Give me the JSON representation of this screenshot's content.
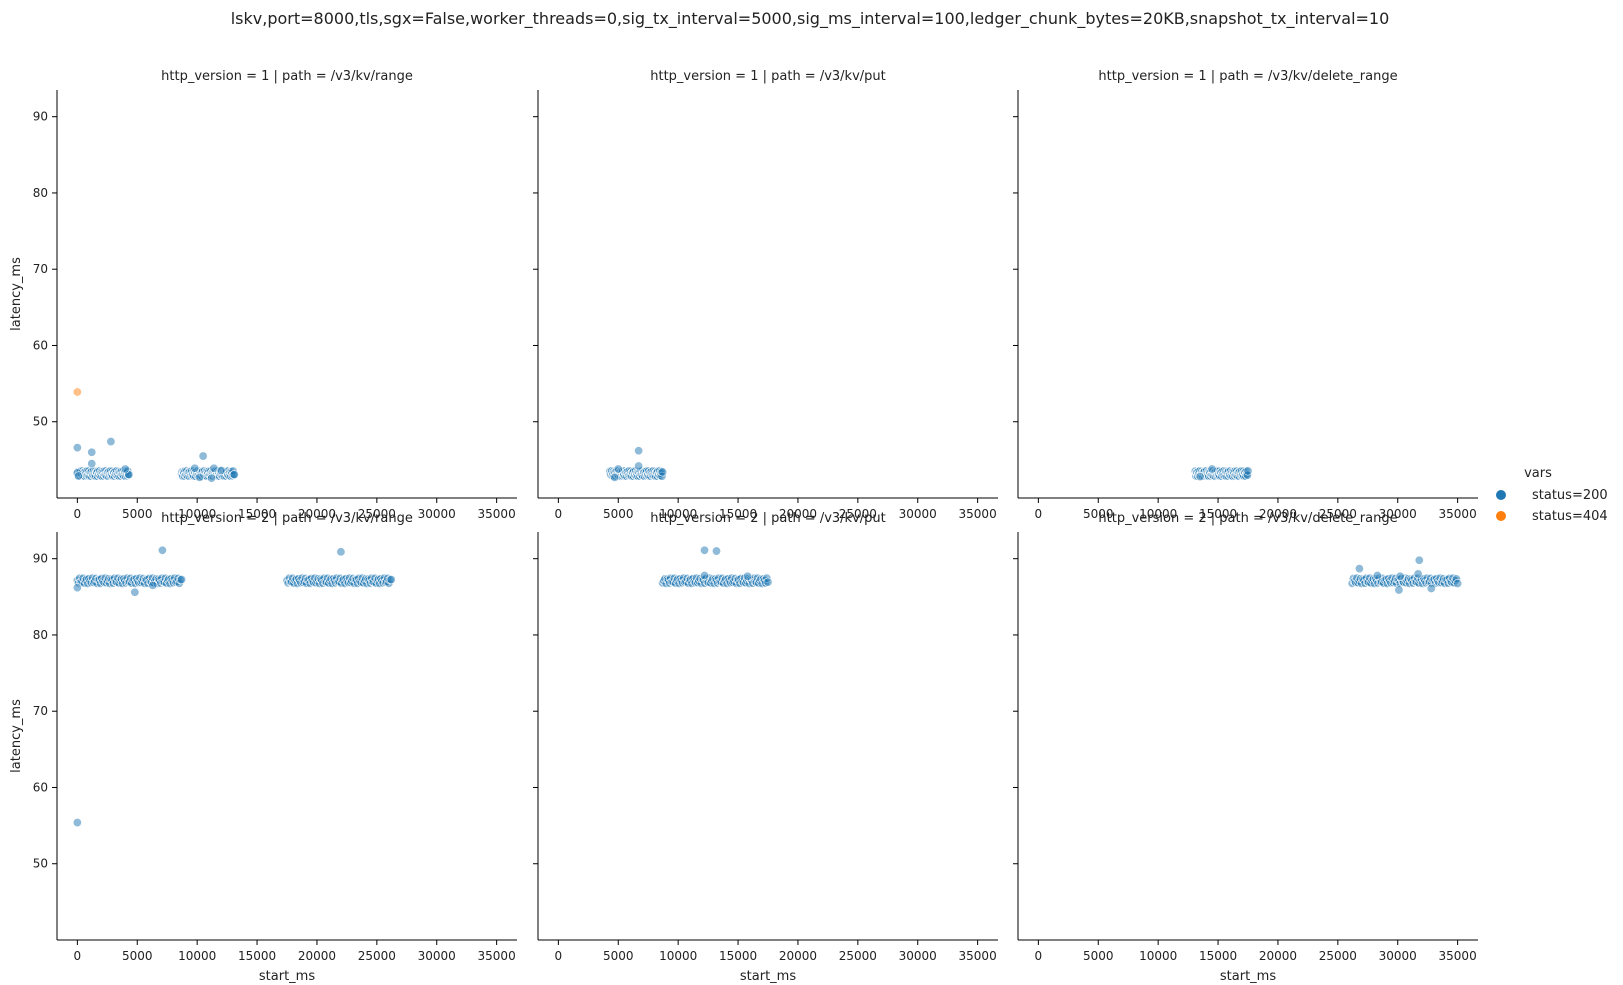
{
  "chart_data": {
    "type": "scatter",
    "suptitle": "lskv,port=8000,tls,sgx=False,worker_threads=0,sig_tx_interval=5000,sig_ms_interval=100,ledger_chunk_bytes=20KB,snapshot_tx_interval=10",
    "xlabel": "start_ms",
    "ylabel": "latency_ms",
    "xlim": [
      -1700,
      36700
    ],
    "xticks": [
      0,
      5000,
      10000,
      15000,
      20000,
      25000,
      30000,
      35000
    ],
    "xtick_labels": [
      "0",
      "5000",
      "10000",
      "15000",
      "20000",
      "25000",
      "30000",
      "35000"
    ],
    "rows": [
      {
        "ylim": [
          40,
          93.5
        ],
        "yticks": [
          50,
          60,
          70,
          80,
          90
        ],
        "ytick_labels": [
          "50",
          "60",
          "70",
          "80",
          "90"
        ]
      },
      {
        "ylim": [
          40,
          93.5
        ],
        "yticks": [
          50,
          60,
          70,
          80,
          90
        ],
        "ytick_labels": [
          "50",
          "60",
          "70",
          "80",
          "90"
        ]
      }
    ],
    "legend": {
      "title": "vars",
      "position": "right",
      "items": [
        {
          "label": "status=200",
          "color": "#1f77b4"
        },
        {
          "label": "status=404",
          "color": "#ff7f0e"
        }
      ]
    },
    "marker_alpha": 0.5,
    "panels": [
      {
        "title": "http_version = 1 | path = /v3/kv/range",
        "row": 0,
        "col": 0,
        "points": [
          {
            "x": 0,
            "y": 53.9,
            "status": "404"
          },
          {
            "x": 0,
            "y": 46.6,
            "status": "200"
          },
          {
            "x": 0,
            "y": 43.3,
            "status": "200"
          },
          {
            "x": 100,
            "y": 42.9,
            "status": "200"
          },
          {
            "x": 1200,
            "y": 44.5,
            "status": "200"
          },
          {
            "x": 1200,
            "y": 46.0,
            "status": "200"
          },
          {
            "x": 2800,
            "y": 47.4,
            "status": "200"
          },
          {
            "x": 4000,
            "y": 43.8,
            "status": "200"
          },
          {
            "x": 10500,
            "y": 45.5,
            "status": "200"
          },
          {
            "x": 9800,
            "y": 43.9,
            "status": "200"
          },
          {
            "x": 11400,
            "y": 43.9,
            "status": "200"
          },
          {
            "x": 10200,
            "y": 42.7,
            "status": "200"
          },
          {
            "x": 11200,
            "y": 42.6,
            "status": "200"
          },
          {
            "x": 12000,
            "y": 43.6,
            "status": "200"
          }
        ],
        "bands": [
          {
            "x_start": 0,
            "x_end": 4300,
            "y": 43.2,
            "status": "200"
          },
          {
            "x_start": 8700,
            "y": 43.2,
            "x_end": 13100,
            "status": "200"
          }
        ]
      },
      {
        "title": "http_version = 1 | path = /v3/kv/put",
        "row": 0,
        "col": 1,
        "points": [
          {
            "x": 6700,
            "y": 46.2,
            "status": "200"
          },
          {
            "x": 6700,
            "y": 44.2,
            "status": "200"
          },
          {
            "x": 5000,
            "y": 43.8,
            "status": "200"
          },
          {
            "x": 4700,
            "y": 42.7,
            "status": "200"
          }
        ],
        "bands": [
          {
            "x_start": 4300,
            "x_end": 8700,
            "y": 43.2,
            "status": "200"
          }
        ]
      },
      {
        "title": "http_version = 1 | path = /v3/kv/delete_range",
        "row": 0,
        "col": 2,
        "points": [
          {
            "x": 14500,
            "y": 43.8,
            "status": "200"
          },
          {
            "x": 13500,
            "y": 42.8,
            "status": "200"
          }
        ],
        "bands": [
          {
            "x_start": 13100,
            "x_end": 17500,
            "y": 43.2,
            "status": "200"
          }
        ]
      },
      {
        "title": "http_version = 2 | path = /v3/kv/range",
        "row": 1,
        "col": 0,
        "points": [
          {
            "x": 0,
            "y": 55.4,
            "status": "200"
          },
          {
            "x": 0,
            "y": 86.2,
            "status": "200"
          },
          {
            "x": 7100,
            "y": 91.1,
            "status": "200"
          },
          {
            "x": 22000,
            "y": 90.9,
            "status": "200"
          },
          {
            "x": 4800,
            "y": 85.6,
            "status": "200"
          },
          {
            "x": 6300,
            "y": 86.5,
            "status": "200"
          }
        ],
        "bands": [
          {
            "x_start": 0,
            "x_end": 8700,
            "y": 87.1,
            "status": "200"
          },
          {
            "x_start": 17500,
            "x_end": 26200,
            "y": 87.1,
            "status": "200"
          }
        ]
      },
      {
        "title": "http_version = 2 | path = /v3/kv/put",
        "row": 1,
        "col": 1,
        "points": [
          {
            "x": 12200,
            "y": 91.1,
            "status": "200"
          },
          {
            "x": 13200,
            "y": 91.0,
            "status": "200"
          },
          {
            "x": 12200,
            "y": 87.8,
            "status": "200"
          },
          {
            "x": 15800,
            "y": 87.7,
            "status": "200"
          }
        ],
        "bands": [
          {
            "x_start": 8700,
            "x_end": 17500,
            "y": 87.1,
            "status": "200"
          }
        ]
      },
      {
        "title": "http_version = 2 | path = /v3/kv/delete_range",
        "row": 1,
        "col": 2,
        "points": [
          {
            "x": 26800,
            "y": 88.7,
            "status": "200"
          },
          {
            "x": 31800,
            "y": 89.8,
            "status": "200"
          },
          {
            "x": 31700,
            "y": 88.0,
            "status": "200"
          },
          {
            "x": 30100,
            "y": 85.9,
            "status": "200"
          },
          {
            "x": 32800,
            "y": 86.1,
            "status": "200"
          },
          {
            "x": 28300,
            "y": 87.8,
            "status": "200"
          },
          {
            "x": 30200,
            "y": 87.7,
            "status": "200"
          }
        ],
        "bands": [
          {
            "x_start": 26200,
            "x_end": 35000,
            "y": 87.1,
            "status": "200"
          }
        ]
      }
    ]
  }
}
